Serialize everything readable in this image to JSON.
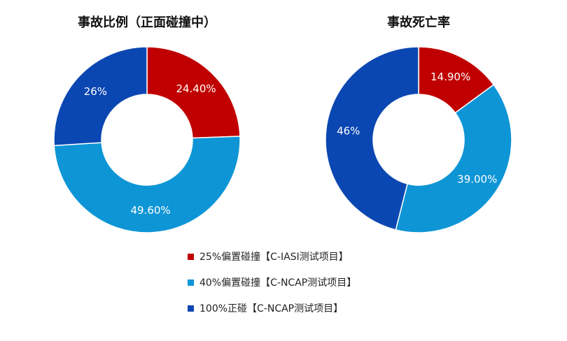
{
  "chart_data": [
    {
      "type": "pie",
      "title": "事故比例（正面碰撞中）",
      "categories": [
        "25%偏置碰撞【C-IASI测试项目】",
        "40%偏置碰撞【C-NCAP测试项目】",
        "100%正碰【C-NCAP测试项目】"
      ],
      "values": [
        24.4,
        49.6,
        26
      ],
      "labels": [
        "24.40%",
        "49.60%",
        "26%"
      ]
    },
    {
      "type": "pie",
      "title": "事故死亡率",
      "categories": [
        "25%偏置碰撞【C-IASI测试项目】",
        "40%偏置碰撞【C-NCAP测试项目】",
        "100%正碰【C-NCAP测试项目】"
      ],
      "values": [
        14.9,
        39.0,
        46
      ],
      "labels": [
        "14.90%",
        "39.00%",
        "46%"
      ]
    }
  ],
  "legend": {
    "items": [
      {
        "label": "25%偏置碰撞【C-IASI测试项目】",
        "color": "#C00000"
      },
      {
        "label": "40%偏置碰撞【C-NCAP测试项目】",
        "color": "#0E95D6"
      },
      {
        "label": "100%正碰【C-NCAP测试项目】",
        "color": "#0B47B2"
      }
    ]
  },
  "colors": [
    "#C00000",
    "#0E95D6",
    "#0B47B2"
  ]
}
